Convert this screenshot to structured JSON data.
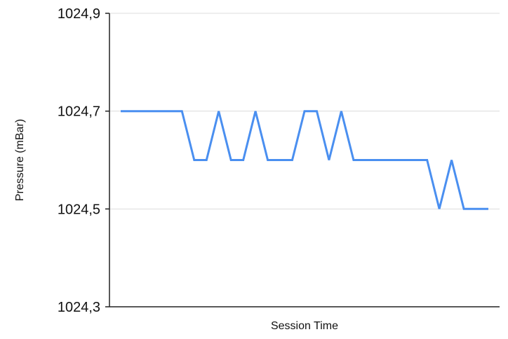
{
  "chart_data": {
    "type": "line",
    "title": "",
    "xlabel": "Session Time",
    "ylabel": "Pressure (mBar)",
    "ylim": [
      1024.3,
      1024.9
    ],
    "yticks": [
      "1024,3",
      "1024,5",
      "1024,7",
      "1024,9"
    ],
    "ytick_values": [
      1024.3,
      1024.5,
      1024.7,
      1024.9
    ],
    "grid": true,
    "legend": "none",
    "x": [
      0,
      1,
      2,
      3,
      4,
      5,
      6,
      7,
      8,
      9,
      10,
      11,
      12,
      13,
      14,
      15,
      16,
      17,
      18,
      19,
      20,
      21,
      22,
      23,
      24,
      25,
      26,
      27,
      28,
      29,
      30
    ],
    "series": [
      {
        "color": "#4a8ff0",
        "values": [
          1024.7,
          1024.7,
          1024.7,
          1024.7,
          1024.7,
          1024.7,
          1024.6,
          1024.6,
          1024.7,
          1024.6,
          1024.6,
          1024.7,
          1024.6,
          1024.6,
          1024.6,
          1024.7,
          1024.7,
          1024.6,
          1024.7,
          1024.6,
          1024.6,
          1024.6,
          1024.6,
          1024.6,
          1024.6,
          1024.6,
          1024.5,
          1024.6,
          1024.5,
          1024.5,
          1024.5
        ]
      }
    ]
  }
}
